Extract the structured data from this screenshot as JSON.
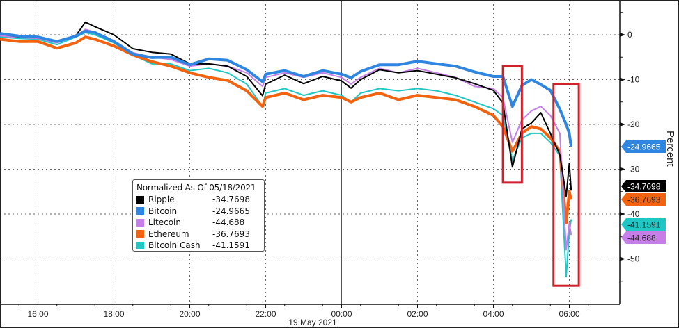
{
  "chart_data": {
    "type": "line",
    "title": "",
    "ylabel": "Percent",
    "xlabel": "19 May 2021",
    "ylim": [
      -60,
      7
    ],
    "xlim": [
      "15:00",
      "07:20"
    ],
    "y_ticks": [
      0,
      -10,
      -20,
      -30,
      -40,
      -50
    ],
    "x_ticks": [
      "16:00",
      "18:00",
      "20:00",
      "22:00",
      "00:00",
      "02:00",
      "04:00",
      "06:00"
    ],
    "grid": true,
    "y_axis_side": "right",
    "legend": {
      "title": "Normalized As Of 05/18/2021",
      "placement": "center-left"
    },
    "x": [
      "15:00",
      "15:30",
      "16:00",
      "16:30",
      "17:00",
      "17:15",
      "17:30",
      "18:00",
      "18:30",
      "19:00",
      "19:30",
      "20:00",
      "20:30",
      "21:00",
      "21:30",
      "21:55",
      "22:00",
      "22:30",
      "23:00",
      "23:30",
      "00:00",
      "00:15",
      "00:30",
      "01:00",
      "01:30",
      "02:00",
      "02:30",
      "03:00",
      "03:30",
      "04:00",
      "04:15",
      "04:30",
      "04:45",
      "05:00",
      "05:15",
      "05:30",
      "05:45",
      "05:55",
      "06:00",
      "06:03"
    ],
    "series": [
      {
        "name": "Ripple",
        "color": "#000000",
        "last": "-34.7698",
        "values": [
          0.2,
          -0.5,
          -0.6,
          -1.6,
          -0.2,
          2.8,
          1.8,
          0,
          -3.1,
          -3.9,
          -4.3,
          -6.5,
          -6.5,
          -7,
          -9.3,
          -13.6,
          -11,
          -9,
          -10.9,
          -9.3,
          -10.3,
          -11.9,
          -10,
          -7.8,
          -8.5,
          -8,
          -8.8,
          -9.6,
          -10.9,
          -12.4,
          -15.2,
          -29.5,
          -21,
          -19.7,
          -17.4,
          -22,
          -26.8,
          -36,
          -28.7,
          -34.7698
        ]
      },
      {
        "name": "Bitcoin",
        "color": "#2f86e0",
        "last": "-24.9665",
        "values": [
          0.3,
          -0.3,
          -0.5,
          -1.5,
          -0.3,
          0.8,
          0.5,
          -1.5,
          -4.3,
          -5.1,
          -5,
          -6.7,
          -5.4,
          -5.7,
          -7.8,
          -10.5,
          -8.8,
          -8,
          -9.3,
          -8,
          -8.8,
          -9.6,
          -8.2,
          -6.7,
          -6.7,
          -5.9,
          -6.5,
          -7,
          -8.3,
          -9.3,
          -9.3,
          -16,
          -11.3,
          -10,
          -11.1,
          -12.4,
          -16.6,
          -20,
          -22,
          -24.9665
        ]
      },
      {
        "name": "Litecoin",
        "color": "#c77ee8",
        "last": "-44.688",
        "values": [
          -0.2,
          -0.6,
          -0.8,
          -1.8,
          -0.3,
          1.2,
          0.6,
          -1.3,
          -4,
          -5,
          -5.5,
          -7,
          -6.5,
          -7,
          -8.5,
          -11.5,
          -9.5,
          -8.5,
          -9.5,
          -8.5,
          -9.5,
          -11,
          -9.5,
          -7.5,
          -8.5,
          -7.5,
          -8.5,
          -9.5,
          -11.5,
          -12,
          -14,
          -24,
          -19,
          -17,
          -16,
          -18,
          -22,
          -48,
          -42,
          -44.688
        ]
      },
      {
        "name": "Ethereum",
        "color": "#f2620f",
        "last": "-36.7693",
        "values": [
          -1,
          -1.5,
          -1.5,
          -3,
          -1.8,
          -0.5,
          -1,
          -2.5,
          -4.5,
          -6,
          -7,
          -8.5,
          -9.5,
          -10.2,
          -12.5,
          -16,
          -14,
          -13,
          -14.5,
          -13.5,
          -14,
          -15,
          -14,
          -13,
          -14.5,
          -13.5,
          -14,
          -14.5,
          -16,
          -18,
          -20.5,
          -26,
          -22,
          -20.5,
          -21,
          -23,
          -26,
          -42,
          -35,
          -36.7693
        ]
      },
      {
        "name": "Bitcoin Cash",
        "color": "#1fc7c4",
        "last": "-41.1591",
        "values": [
          -0.5,
          -0.8,
          -1,
          -2.2,
          -0.5,
          0.5,
          0,
          -1.8,
          -4.5,
          -6.5,
          -6.5,
          -8,
          -7.5,
          -8.5,
          -11,
          -16,
          -13,
          -12,
          -13.5,
          -12.5,
          -13.5,
          -15,
          -13,
          -12,
          -12.5,
          -12,
          -12.5,
          -13.5,
          -15,
          -16.5,
          -18,
          -28,
          -23,
          -22,
          -22,
          -24,
          -27,
          -54,
          -44,
          -41.1591
        ]
      }
    ],
    "annotations": [
      {
        "type": "box",
        "color": "#d0202a",
        "x": [
          "04:15",
          "04:45"
        ],
        "y": [
          -7,
          -33
        ]
      },
      {
        "type": "box",
        "color": "#d0202a",
        "x": [
          "05:35",
          "06:15"
        ],
        "y": [
          -11,
          -56
        ]
      }
    ]
  }
}
